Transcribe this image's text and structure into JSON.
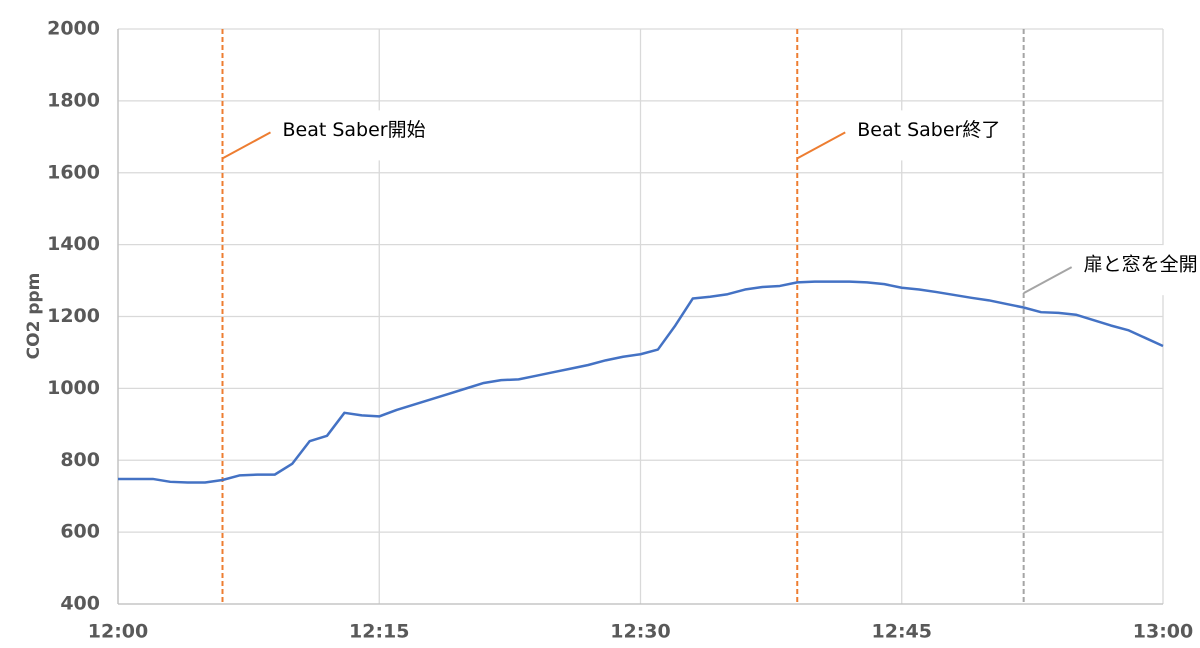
{
  "chart_data": {
    "type": "line",
    "y_label": "CO2 ppm",
    "x": [
      "12:00",
      "12:01",
      "12:02",
      "12:03",
      "12:04",
      "12:05",
      "12:06",
      "12:07",
      "12:08",
      "12:09",
      "12:10",
      "12:11",
      "12:12",
      "12:13",
      "12:14",
      "12:15",
      "12:16",
      "12:17",
      "12:18",
      "12:19",
      "12:20",
      "12:21",
      "12:22",
      "12:23",
      "12:24",
      "12:25",
      "12:26",
      "12:27",
      "12:28",
      "12:29",
      "12:30",
      "12:31",
      "12:32",
      "12:33",
      "12:34",
      "12:35",
      "12:36",
      "12:37",
      "12:38",
      "12:39",
      "12:40",
      "12:41",
      "12:42",
      "12:43",
      "12:44",
      "12:45",
      "12:46",
      "12:47",
      "12:48",
      "12:49",
      "12:50",
      "12:51",
      "12:52",
      "12:53",
      "12:54",
      "12:55",
      "12:56",
      "12:57",
      "12:58",
      "12:59",
      "13:00"
    ],
    "series": [
      {
        "name": "CO2",
        "color": "#4472C4",
        "values": [
          748,
          748,
          748,
          740,
          738,
          738,
          745,
          758,
          760,
          760,
          790,
          853,
          868,
          932,
          925,
          922,
          940,
          955,
          970,
          985,
          1000,
          1015,
          1023,
          1025,
          1035,
          1045,
          1055,
          1065,
          1078,
          1088,
          1095,
          1108,
          1175,
          1250,
          1255,
          1262,
          1275,
          1282,
          1285,
          1295,
          1297,
          1297,
          1297,
          1295,
          1290,
          1280,
          1275,
          1268,
          1260,
          1252,
          1245,
          1235,
          1225,
          1212,
          1210,
          1205,
          1190,
          1175,
          1162,
          1140,
          1118
        ]
      }
    ],
    "xlim": [
      "12:00",
      "13:00"
    ],
    "xticks": [
      "12:00",
      "12:15",
      "12:30",
      "12:45",
      "13:00"
    ],
    "ylim": [
      400,
      2000
    ],
    "yticks": [
      400,
      600,
      800,
      1000,
      1200,
      1400,
      1600,
      1800,
      2000
    ],
    "grid": true,
    "annotations": [
      {
        "x": "12:06",
        "label": "Beat Saber開始",
        "color": "#ED7D31",
        "y": 1640
      },
      {
        "x": "12:39",
        "label": "Beat Saber終了",
        "color": "#ED7D31",
        "y": 1640
      },
      {
        "x": "12:52",
        "label": "扉と窓を全開",
        "color": "#A5A5A5",
        "y": 1265
      }
    ]
  }
}
